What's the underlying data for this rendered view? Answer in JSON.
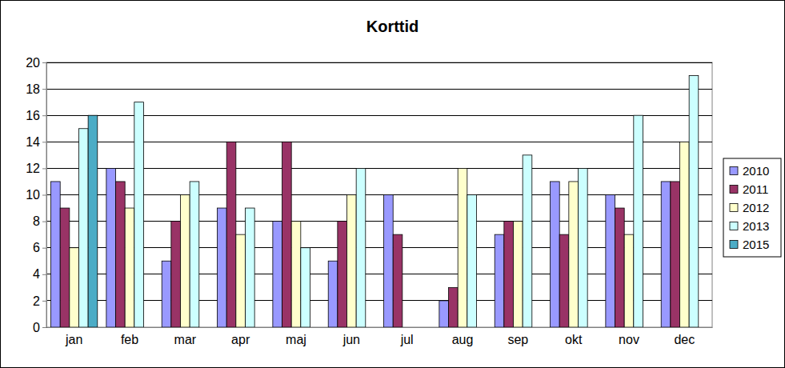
{
  "chart_data": {
    "type": "bar",
    "title": "Korttid",
    "categories": [
      "jan",
      "feb",
      "mar",
      "apr",
      "maj",
      "jun",
      "jul",
      "aug",
      "sep",
      "okt",
      "nov",
      "dec"
    ],
    "series": [
      {
        "name": "2010",
        "color": "#9999ff",
        "values": [
          11,
          12,
          5,
          9,
          8,
          5,
          10,
          2,
          7,
          11,
          10,
          11
        ]
      },
      {
        "name": "2011",
        "color": "#993366",
        "values": [
          9,
          11,
          8,
          14,
          14,
          8,
          7,
          3,
          8,
          7,
          9,
          11
        ]
      },
      {
        "name": "2012",
        "color": "#ffffcc",
        "values": [
          6,
          9,
          10,
          7,
          8,
          10,
          null,
          12,
          8,
          11,
          7,
          14
        ]
      },
      {
        "name": "2013",
        "color": "#ccffff",
        "values": [
          15,
          17,
          11,
          9,
          6,
          12,
          null,
          10,
          13,
          12,
          16,
          19
        ]
      },
      {
        "name": "2015",
        "color": "#4bacc6",
        "values": [
          16,
          null,
          null,
          null,
          null,
          null,
          null,
          null,
          null,
          null,
          null,
          null
        ]
      }
    ],
    "ylim": [
      0,
      20
    ],
    "yticks": [
      0,
      2,
      4,
      6,
      8,
      10,
      12,
      14,
      16,
      18,
      20
    ],
    "grid": true,
    "legend": "right"
  }
}
